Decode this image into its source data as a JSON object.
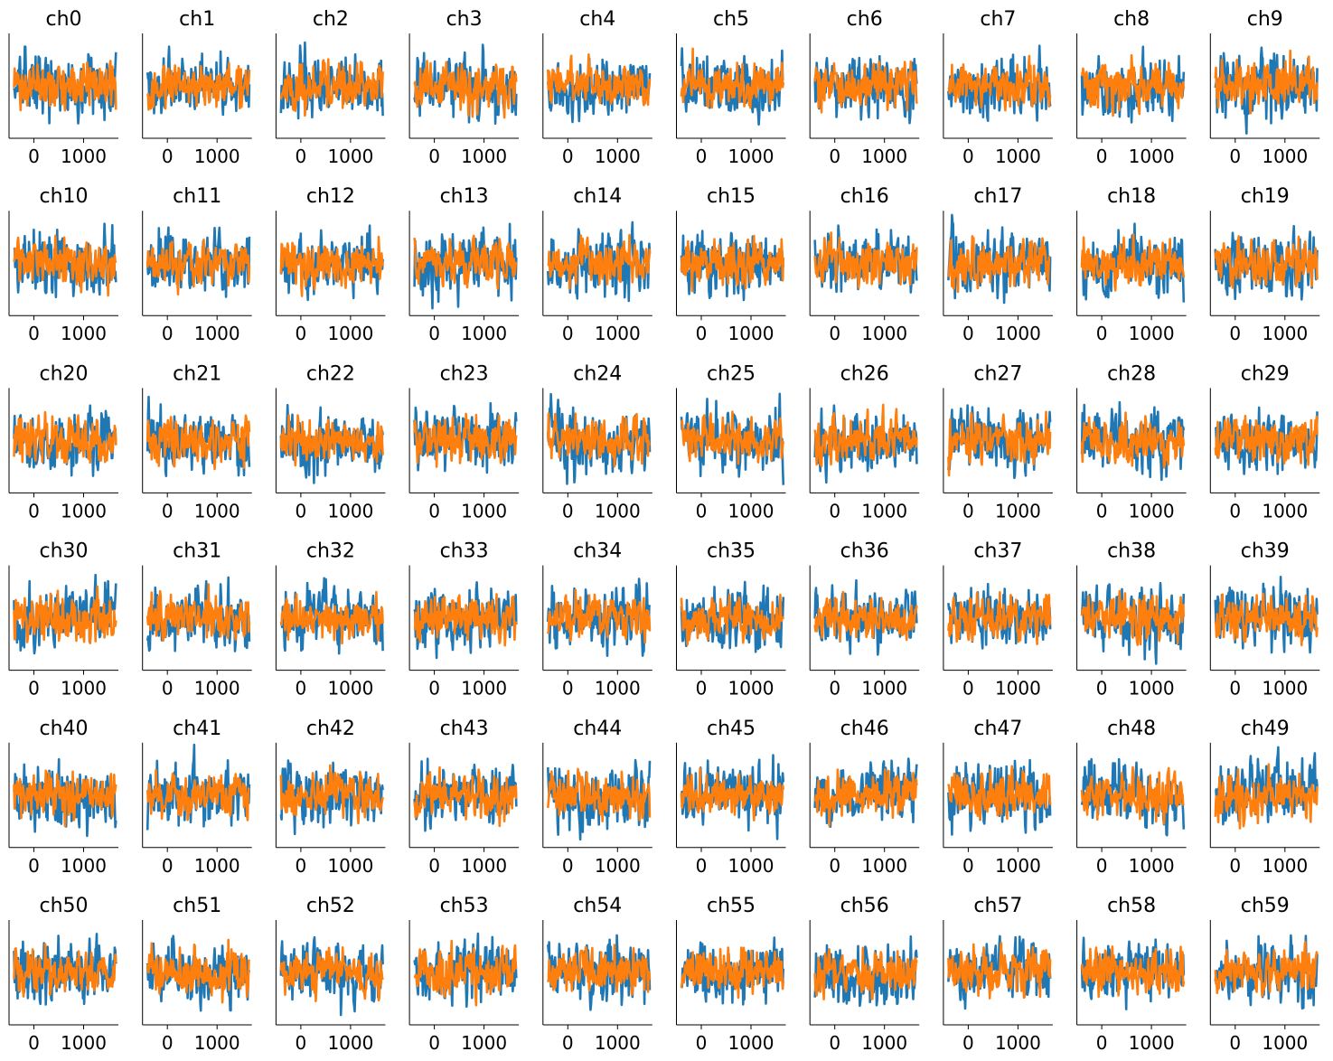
{
  "chart_data": {
    "type": "line",
    "layout": {
      "rows": 6,
      "cols": 10
    },
    "shared_axes": {
      "xticks": [
        0,
        1000
      ],
      "xtick_labels": [
        "0",
        "1000"
      ],
      "xlim": [
        -500,
        1700
      ],
      "ylim": [
        -4,
        4
      ],
      "yticks_visible": false,
      "spines": [
        "left",
        "bottom"
      ],
      "grid": false
    },
    "series_styles": [
      {
        "key": "blue",
        "color": "#1f77b4"
      },
      {
        "key": "orange",
        "color": "#ff7f0e"
      }
    ],
    "x_range": [
      -400,
      1650
    ],
    "samples_per_trace": 171,
    "panels": [
      {
        "title": "ch0"
      },
      {
        "title": "ch1"
      },
      {
        "title": "ch2"
      },
      {
        "title": "ch3"
      },
      {
        "title": "ch4"
      },
      {
        "title": "ch5"
      },
      {
        "title": "ch6"
      },
      {
        "title": "ch7"
      },
      {
        "title": "ch8"
      },
      {
        "title": "ch9"
      },
      {
        "title": "ch10"
      },
      {
        "title": "ch11"
      },
      {
        "title": "ch12"
      },
      {
        "title": "ch13"
      },
      {
        "title": "ch14"
      },
      {
        "title": "ch15"
      },
      {
        "title": "ch16"
      },
      {
        "title": "ch17"
      },
      {
        "title": "ch18"
      },
      {
        "title": "ch19"
      },
      {
        "title": "ch20"
      },
      {
        "title": "ch21"
      },
      {
        "title": "ch22"
      },
      {
        "title": "ch23"
      },
      {
        "title": "ch24"
      },
      {
        "title": "ch25"
      },
      {
        "title": "ch26"
      },
      {
        "title": "ch27"
      },
      {
        "title": "ch28"
      },
      {
        "title": "ch29"
      },
      {
        "title": "ch30"
      },
      {
        "title": "ch31"
      },
      {
        "title": "ch32"
      },
      {
        "title": "ch33"
      },
      {
        "title": "ch34"
      },
      {
        "title": "ch35"
      },
      {
        "title": "ch36"
      },
      {
        "title": "ch37"
      },
      {
        "title": "ch38"
      },
      {
        "title": "ch39"
      },
      {
        "title": "ch40"
      },
      {
        "title": "ch41"
      },
      {
        "title": "ch42"
      },
      {
        "title": "ch43"
      },
      {
        "title": "ch44"
      },
      {
        "title": "ch45"
      },
      {
        "title": "ch46"
      },
      {
        "title": "ch47"
      },
      {
        "title": "ch48"
      },
      {
        "title": "ch49"
      },
      {
        "title": "ch50"
      },
      {
        "title": "ch51"
      },
      {
        "title": "ch52"
      },
      {
        "title": "ch53"
      },
      {
        "title": "ch54"
      },
      {
        "title": "ch55"
      },
      {
        "title": "ch56"
      },
      {
        "title": "ch57"
      },
      {
        "title": "ch58"
      },
      {
        "title": "ch59"
      }
    ]
  }
}
